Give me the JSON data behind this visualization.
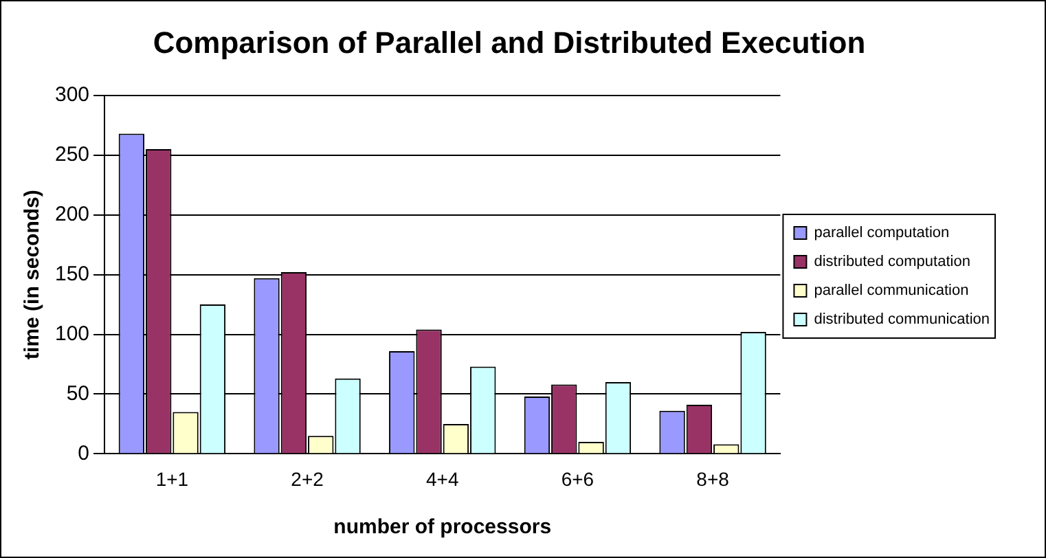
{
  "chart_data": {
    "type": "bar",
    "title": "Comparison of Parallel and Distributed Execution",
    "xlabel": "number of processors",
    "ylabel": "time (in seconds)",
    "categories": [
      "1+1",
      "2+2",
      "4+4",
      "6+6",
      "8+8"
    ],
    "series": [
      {
        "name": "parallel computation",
        "color": "#9999ff",
        "values": [
          268,
          147,
          86,
          48,
          36
        ]
      },
      {
        "name": "distributed computation",
        "color": "#993366",
        "values": [
          255,
          152,
          104,
          58,
          41
        ]
      },
      {
        "name": "parallel communication",
        "color": "#ffffcc",
        "values": [
          35,
          15,
          25,
          10,
          8
        ]
      },
      {
        "name": "distributed communication",
        "color": "#ccffff",
        "values": [
          125,
          63,
          73,
          60,
          102
        ]
      }
    ],
    "ylim": [
      0,
      300
    ],
    "yticks": [
      0,
      50,
      100,
      150,
      200,
      250,
      300
    ],
    "grid": "y",
    "legend": "right"
  }
}
